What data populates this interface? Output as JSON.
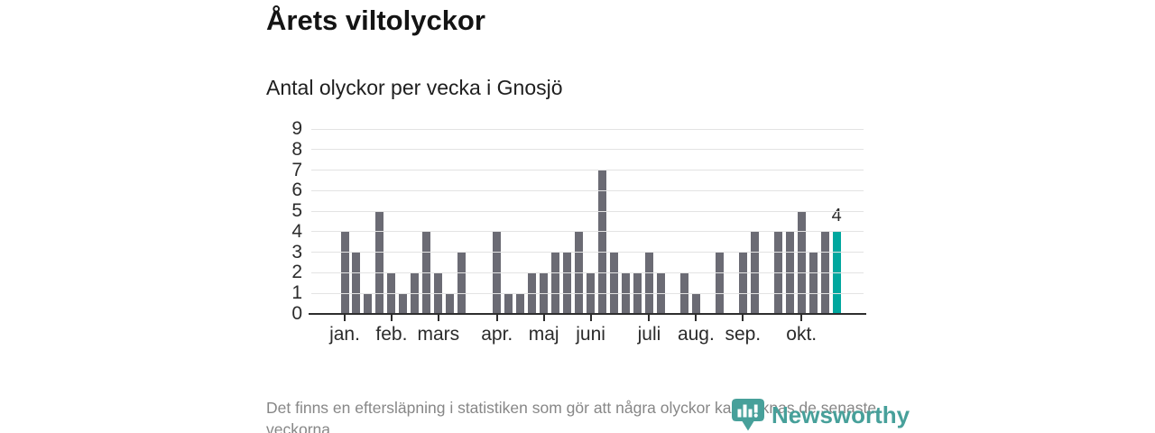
{
  "chart_data": {
    "type": "bar",
    "title": "Årets viltolyckor",
    "subtitle": "Antal olyckor per vecka i Gnosjö",
    "x_unit": "vecka",
    "weeks": [
      1,
      2,
      3,
      4,
      5,
      6,
      7,
      8,
      9,
      10,
      11,
      12,
      13,
      14,
      15,
      16,
      17,
      18,
      19,
      20,
      21,
      22,
      23,
      24,
      25,
      26,
      27,
      28,
      29,
      30,
      31,
      32,
      33,
      34,
      35,
      36,
      37,
      38,
      39,
      40,
      41,
      42,
      43
    ],
    "values": [
      4,
      3,
      1,
      5,
      2,
      1,
      2,
      4,
      2,
      1,
      3,
      0,
      0,
      4,
      1,
      1,
      2,
      2,
      3,
      3,
      4,
      2,
      7,
      3,
      2,
      2,
      3,
      2,
      0,
      2,
      1,
      0,
      3,
      0,
      3,
      4,
      0,
      4,
      4,
      5,
      3,
      4,
      4
    ],
    "ylim": [
      0,
      9
    ],
    "yticks": [
      0,
      1,
      2,
      3,
      4,
      5,
      6,
      7,
      8,
      9
    ],
    "grid": true,
    "legend": "none",
    "bar_color": "#6b6b74",
    "month_ticks": [
      {
        "label": "jan.",
        "week": 1
      },
      {
        "label": "feb.",
        "week": 5
      },
      {
        "label": "mars",
        "week": 9
      },
      {
        "label": "apr.",
        "week": 14
      },
      {
        "label": "maj",
        "week": 18
      },
      {
        "label": "juni",
        "week": 22
      },
      {
        "label": "juli",
        "week": 27
      },
      {
        "label": "aug.",
        "week": 31
      },
      {
        "label": "sep.",
        "week": 35
      },
      {
        "label": "okt.",
        "week": 40
      }
    ],
    "highlight": {
      "week": 43,
      "value": 4,
      "label": "4",
      "color": "#00a79e"
    }
  },
  "footer": {
    "note": "Det finns en eftersläpning i statistiken som gör att några olyckor kan saknas de senaste veckorna."
  },
  "logo": {
    "text": "Newsworthy",
    "color": "#47a09a",
    "icon": "newsworthy-pin-barchart-icon"
  },
  "colors": {
    "accent_teal": "#00a79e",
    "bar_gray": "#6b6b74",
    "gridline": "#e3e3e3",
    "axis": "#2e2e2e",
    "text_dark": "#141414",
    "text_muted": "#878787"
  }
}
